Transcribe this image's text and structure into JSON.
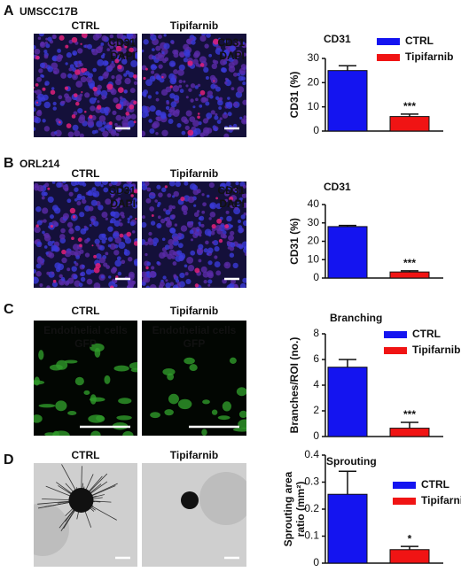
{
  "panels": [
    {
      "letter": "A",
      "name": "UMSCC17B",
      "images": [
        {
          "title": "CTRL",
          "kind": "fluor-red",
          "labels": [
            {
              "text": "CD31",
              "color": "#ff2020"
            },
            {
              "text": "DAPI",
              "color": "#3a7bff"
            }
          ]
        },
        {
          "title": "Tipifarnib",
          "kind": "fluor-red",
          "labels": [
            {
              "text": "CD31",
              "color": "#ff2020"
            },
            {
              "text": "DAPI",
              "color": "#3a7bff"
            }
          ]
        }
      ]
    },
    {
      "letter": "B",
      "name": "ORL214",
      "images": [
        {
          "title": "CTRL",
          "kind": "fluor-red",
          "labels": [
            {
              "text": "CD31",
              "color": "#ff2020"
            },
            {
              "text": "DAPI",
              "color": "#3a7bff"
            }
          ]
        },
        {
          "title": "Tipifarnib",
          "kind": "fluor-red",
          "labels": [
            {
              "text": "CD31",
              "color": "#ff2020"
            },
            {
              "text": "DAPI",
              "color": "#3a7bff"
            }
          ]
        }
      ]
    },
    {
      "letter": "C",
      "images": [
        {
          "title": "CTRL",
          "kind": "fluor-green",
          "labels": [
            {
              "text": "Endothelial cells",
              "color": "#2fcf3a"
            },
            {
              "text": "GFP",
              "color": "#2fcf3a"
            }
          ]
        },
        {
          "title": "Tipifarnib",
          "kind": "fluor-green",
          "labels": [
            {
              "text": "Endothelial cells",
              "color": "#2fcf3a"
            },
            {
              "text": "GFP",
              "color": "#2fcf3a"
            }
          ]
        }
      ]
    },
    {
      "letter": "D",
      "images": [
        {
          "title": "CTRL",
          "kind": "brightfield"
        },
        {
          "title": "Tipifarnib",
          "kind": "brightfield"
        }
      ]
    }
  ],
  "chart_data": [
    {
      "type": "bar",
      "title": "CD31",
      "ylabel": [
        "CD31 (%)"
      ],
      "ylim": [
        0,
        30
      ],
      "yticks": [
        0,
        10,
        20,
        30
      ],
      "legend": "upper right",
      "series": [
        {
          "name": "CTRL",
          "color": "#1414f0",
          "values": [
            25
          ],
          "errors": [
            2
          ]
        },
        {
          "name": "Tipifarnib",
          "color": "#f01414",
          "values": [
            6
          ],
          "errors": [
            1
          ],
          "annotation": "***"
        }
      ]
    },
    {
      "type": "bar",
      "title": "CD31",
      "ylabel": [
        "CD31 (%)"
      ],
      "ylim": [
        0,
        40
      ],
      "yticks": [
        0,
        10,
        20,
        30,
        40
      ],
      "series": [
        {
          "color": "#1414f0",
          "values": [
            28
          ],
          "errors": [
            0.6
          ]
        },
        {
          "color": "#f01414",
          "values": [
            3.3
          ],
          "errors": [
            0.6
          ],
          "annotation": "***"
        }
      ]
    },
    {
      "type": "bar",
      "title": "Branching",
      "ylabel": [
        "Branches/ROI (no.)"
      ],
      "ylim": [
        0,
        8
      ],
      "yticks": [
        0,
        2,
        4,
        6,
        8
      ],
      "legend": "upper right",
      "series": [
        {
          "name": "CTRL",
          "color": "#1414f0",
          "values": [
            5.4
          ],
          "errors": [
            0.6
          ]
        },
        {
          "name": "Tipifarnib",
          "color": "#f01414",
          "values": [
            0.65
          ],
          "errors": [
            0.45
          ],
          "annotation": "***"
        }
      ]
    },
    {
      "type": "bar",
      "title": "Sprouting",
      "ylabel": [
        "Sprouting area",
        "ratio (mm²)"
      ],
      "ylim": [
        0,
        0.4
      ],
      "yticks": [
        0,
        0.1,
        0.2,
        0.3,
        0.4
      ],
      "legend": "upper right",
      "series": [
        {
          "name": "CTRL",
          "color": "#1414f0",
          "values": [
            0.255
          ],
          "errors": [
            0.085
          ]
        },
        {
          "name": "Tipifarnib",
          "color": "#f01414",
          "values": [
            0.05
          ],
          "errors": [
            0.012
          ],
          "annotation": "*"
        }
      ]
    }
  ]
}
